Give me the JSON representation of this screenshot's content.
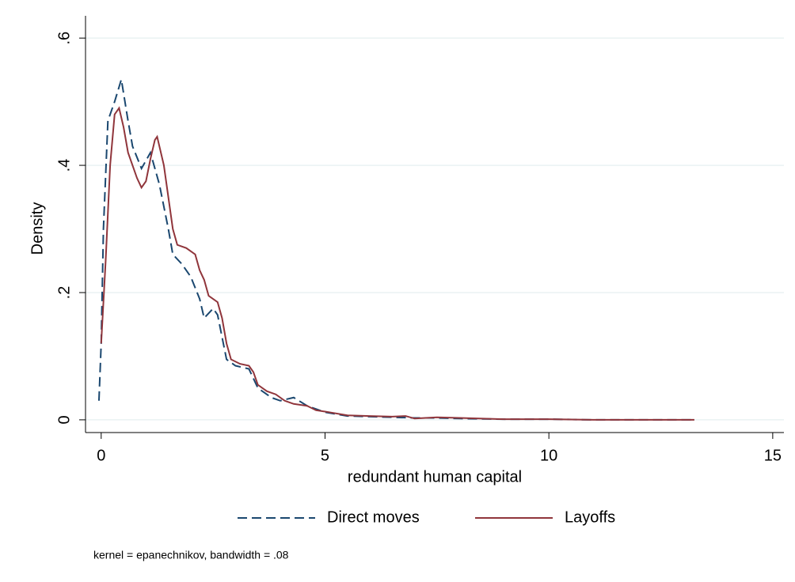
{
  "chart_data": {
    "type": "line",
    "xlabel": "redundant human capital",
    "ylabel": "Density",
    "note": "kernel = epanechnikov, bandwidth = .08",
    "xlim": [
      -0.35,
      15.25
    ],
    "ylim": [
      -0.02,
      0.635
    ],
    "xticks": [
      0,
      5,
      10,
      15
    ],
    "yticks": [
      0,
      {
        "value": 0.2,
        "label": ".2"
      },
      {
        "value": 0.4,
        "label": ".4"
      },
      {
        "value": 0.6,
        "label": ".6"
      }
    ],
    "grid": true,
    "legend": "bottom",
    "series": [
      {
        "name": "Direct moves",
        "color": "#1a476f",
        "dash": true,
        "x": [
          -0.05,
          0.0,
          0.05,
          0.15,
          0.3,
          0.45,
          0.6,
          0.7,
          0.9,
          1.1,
          1.3,
          1.5,
          1.6,
          1.8,
          2.0,
          2.2,
          2.3,
          2.5,
          2.6,
          2.8,
          3.0,
          3.3,
          3.5,
          3.8,
          4.0,
          4.3,
          4.6,
          5.0,
          5.5,
          6.0,
          6.5,
          7.0,
          7.5,
          8.0,
          9.0,
          10,
          11,
          12,
          13.25
        ],
        "values": [
          0.03,
          0.12,
          0.3,
          0.47,
          0.5,
          0.535,
          0.47,
          0.43,
          0.395,
          0.42,
          0.37,
          0.3,
          0.26,
          0.245,
          0.225,
          0.19,
          0.16,
          0.175,
          0.165,
          0.095,
          0.085,
          0.08,
          0.05,
          0.035,
          0.03,
          0.035,
          0.022,
          0.012,
          0.006,
          0.005,
          0.004,
          0.003,
          0.003,
          0.002,
          0.001,
          0.001,
          0,
          0,
          0
        ]
      },
      {
        "name": "Layoffs",
        "color": "#90353b",
        "dash": false,
        "x": [
          0.0,
          0.1,
          0.2,
          0.3,
          0.4,
          0.5,
          0.6,
          0.8,
          0.9,
          1.0,
          1.1,
          1.2,
          1.25,
          1.4,
          1.5,
          1.6,
          1.7,
          1.9,
          2.1,
          2.2,
          2.3,
          2.4,
          2.5,
          2.6,
          2.7,
          2.8,
          2.9,
          3.1,
          3.3,
          3.4,
          3.5,
          3.7,
          3.9,
          4.1,
          4.3,
          4.6,
          4.8,
          5.0,
          5.5,
          6.0,
          6.5,
          6.8,
          7.0,
          7.5,
          8.0,
          9,
          10,
          11,
          12,
          13.25
        ],
        "values": [
          0.12,
          0.25,
          0.4,
          0.48,
          0.49,
          0.46,
          0.42,
          0.38,
          0.365,
          0.375,
          0.41,
          0.44,
          0.445,
          0.4,
          0.35,
          0.3,
          0.275,
          0.27,
          0.26,
          0.235,
          0.22,
          0.195,
          0.19,
          0.185,
          0.16,
          0.12,
          0.095,
          0.088,
          0.085,
          0.075,
          0.055,
          0.045,
          0.04,
          0.03,
          0.025,
          0.022,
          0.015,
          0.013,
          0.007,
          0.006,
          0.005,
          0.006,
          0.002,
          0.004,
          0.003,
          0.001,
          0.001,
          0,
          0,
          0
        ]
      }
    ]
  }
}
